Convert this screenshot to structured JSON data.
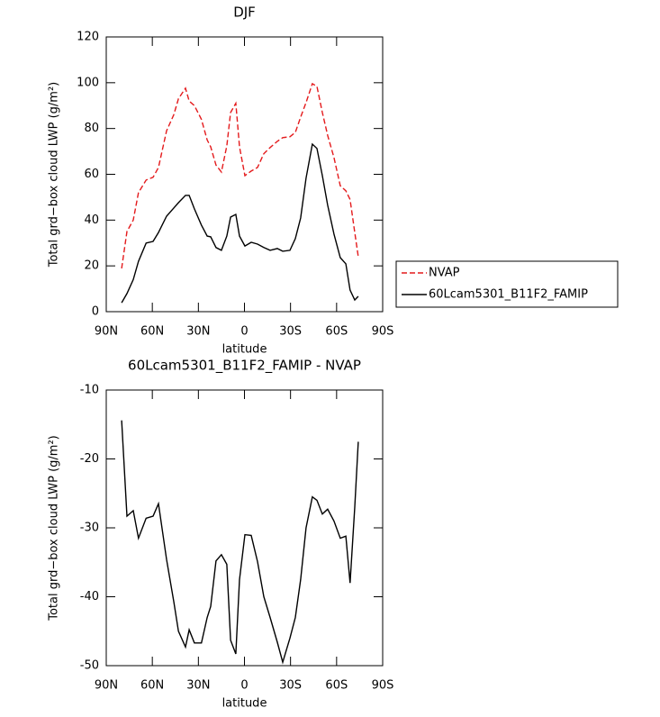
{
  "chart_data": [
    {
      "type": "line",
      "title": "DJF",
      "x_label": "latitude",
      "y_label": "Total grd−box cloud LWP (g/m²)",
      "x": [
        80,
        76.5,
        72.4,
        69,
        64,
        59.5,
        56,
        50.7,
        46,
        43,
        38.4,
        36,
        32.6,
        28,
        24.3,
        22,
        18.5,
        15,
        11.5,
        9,
        5.6,
        3.2,
        -0.3,
        -4.4,
        -8.5,
        -12.6,
        -16.7,
        -21.4,
        -24.9,
        -29.6,
        -33.1,
        -36.6,
        -40.1,
        -44.2,
        -47.2,
        -50.7,
        -54.2,
        -58.3,
        -62.4,
        -66,
        -68.8,
        -71.8,
        -74.1
      ],
      "series": [
        {
          "name": "NVAP",
          "color": "#e41a1c",
          "dashed": true,
          "values": [
            18.9,
            35,
            40,
            52,
            57.5,
            58.7,
            63,
            79,
            86,
            93,
            97.6,
            92,
            90,
            84,
            75,
            72,
            64,
            61,
            72.4,
            87,
            91,
            72,
            59.4,
            61.4,
            63,
            69,
            71.7,
            74.4,
            76,
            76.4,
            78.3,
            85,
            91.3,
            99.6,
            98.4,
            87,
            77,
            67.3,
            55,
            52.8,
            49,
            34.6,
            24
          ]
        },
        {
          "name": "60Lcam5301_B11F2_FAMIP",
          "color": "#000000",
          "dashed": false,
          "values": [
            3.9,
            7.9,
            14,
            22,
            30,
            30.7,
            34.6,
            41.7,
            45.3,
            47.6,
            50.8,
            50.8,
            44.9,
            37.8,
            33,
            32.7,
            28,
            26.8,
            33,
            41.3,
            42.5,
            33,
            28.7,
            30.3,
            29.5,
            28,
            26.8,
            27.6,
            26.4,
            26.8,
            31.9,
            40.9,
            58.3,
            73.2,
            71.3,
            59.4,
            46.5,
            33.9,
            23.6,
            20.9,
            9.4,
            5.1,
            6.7
          ]
        }
      ],
      "xlim": [
        90,
        -90
      ],
      "xticks": [
        {
          "value": 90,
          "label": "90N"
        },
        {
          "value": 60,
          "label": "60N"
        },
        {
          "value": 30,
          "label": "30N"
        },
        0,
        {
          "value": -30,
          "label": "30S"
        },
        {
          "value": -60,
          "label": "60S"
        },
        {
          "value": -90,
          "label": "90S"
        }
      ],
      "ylim": [
        0,
        120
      ],
      "yticks": [
        0,
        20,
        40,
        60,
        80,
        100,
        120
      ],
      "legend": "outside right"
    },
    {
      "type": "line",
      "title": "60Lcam5301_B11F2_FAMIP - NVAP",
      "x_label": "latitude",
      "y_label": "Total grd−box cloud LWP (g/m²)",
      "x": [
        80,
        76.5,
        72.4,
        69,
        64,
        59.5,
        56,
        50.7,
        46,
        43,
        38.4,
        36,
        32.6,
        28,
        24.3,
        22,
        18.5,
        15,
        11.5,
        9,
        5.6,
        3.2,
        -0.3,
        -4.4,
        -8.5,
        -12.6,
        -16.7,
        -21.4,
        -24.9,
        -29.6,
        -33.1,
        -36.6,
        -40.1,
        -44.2,
        -47.2,
        -50.7,
        -54.2,
        -58.3,
        -62.4,
        -66,
        -68.8,
        -71.8,
        -74.1
      ],
      "values": [
        -14.4,
        -28.3,
        -27.5,
        -31.5,
        -28.6,
        -28.3,
        -26.5,
        -34.6,
        -40.7,
        -45,
        -47.3,
        -44.8,
        -46.7,
        -46.7,
        -43,
        -41.4,
        -34.8,
        -33.9,
        -35.3,
        -46.3,
        -48.3,
        -37.5,
        -31,
        -31.1,
        -34.9,
        -40,
        -43,
        -46.6,
        -49.5,
        -46,
        -43,
        -37.5,
        -30,
        -25.5,
        -26,
        -28,
        -27.3,
        -29,
        -31.5,
        -31.2,
        -38,
        -27,
        -17.5
      ],
      "color": "#000000",
      "xlim": [
        90,
        -90
      ],
      "xticks": [
        {
          "value": 90,
          "label": "90N"
        },
        {
          "value": 60,
          "label": "60N"
        },
        {
          "value": 30,
          "label": "30N"
        },
        0,
        {
          "value": -30,
          "label": "30S"
        },
        {
          "value": -60,
          "label": "60S"
        },
        {
          "value": -90,
          "label": "90S"
        }
      ],
      "ylim": [
        -50,
        -10
      ],
      "yticks": [
        -50,
        -40,
        -30,
        -20,
        -10
      ]
    }
  ]
}
